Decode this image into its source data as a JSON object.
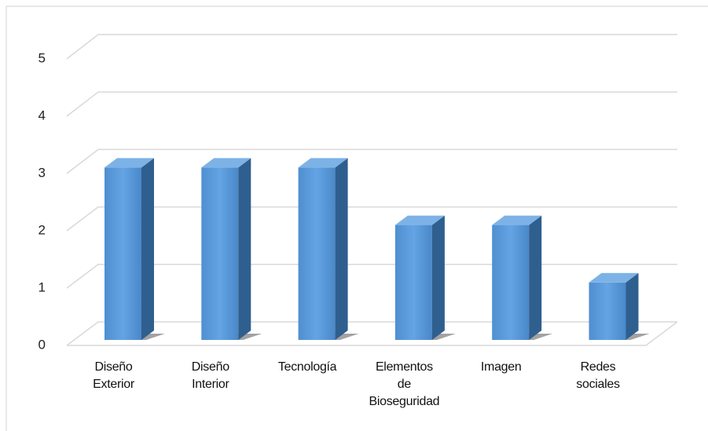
{
  "chart_data": {
    "type": "bar3d",
    "categories": [
      "Diseño Exterior",
      "Diseño Interior",
      "Tecnología",
      "Elementos de Bioseguridad",
      "Imagen",
      "Redes sociales"
    ],
    "values": [
      3,
      3,
      3,
      2,
      2,
      1
    ],
    "color": "#5b9bd5",
    "ylim": [
      0,
      5
    ],
    "yticks": [
      0,
      1,
      2,
      3,
      4,
      5
    ],
    "grid": true
  }
}
